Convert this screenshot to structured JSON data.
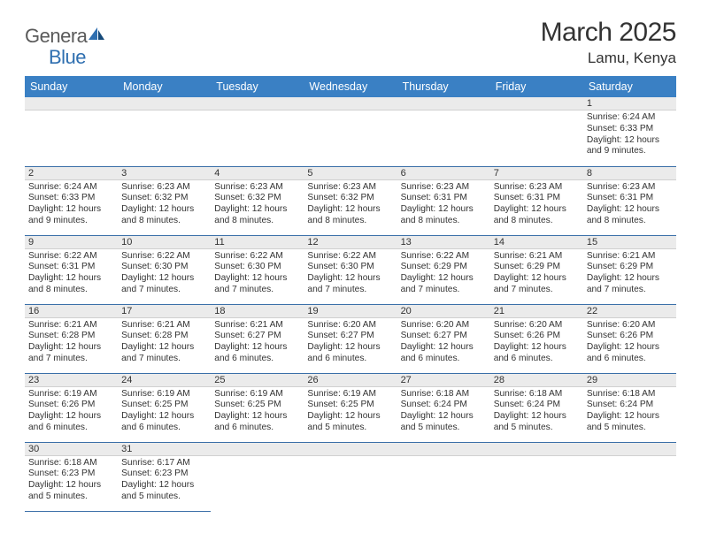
{
  "logo": {
    "text_left": "Genera",
    "text_right": "Blue"
  },
  "title": "March 2025",
  "location": "Lamu, Kenya",
  "header_color": "#3a80c4",
  "row_border_color": "#3a6fa8",
  "daynum_bg": "#ebebeb",
  "day_headers": [
    "Sunday",
    "Monday",
    "Tuesday",
    "Wednesday",
    "Thursday",
    "Friday",
    "Saturday"
  ],
  "weeks": [
    [
      null,
      null,
      null,
      null,
      null,
      null,
      {
        "n": "1",
        "sr": "Sunrise: 6:24 AM",
        "ss": "Sunset: 6:33 PM",
        "dl": "Daylight: 12 hours and 9 minutes."
      }
    ],
    [
      {
        "n": "2",
        "sr": "Sunrise: 6:24 AM",
        "ss": "Sunset: 6:33 PM",
        "dl": "Daylight: 12 hours and 9 minutes."
      },
      {
        "n": "3",
        "sr": "Sunrise: 6:23 AM",
        "ss": "Sunset: 6:32 PM",
        "dl": "Daylight: 12 hours and 8 minutes."
      },
      {
        "n": "4",
        "sr": "Sunrise: 6:23 AM",
        "ss": "Sunset: 6:32 PM",
        "dl": "Daylight: 12 hours and 8 minutes."
      },
      {
        "n": "5",
        "sr": "Sunrise: 6:23 AM",
        "ss": "Sunset: 6:32 PM",
        "dl": "Daylight: 12 hours and 8 minutes."
      },
      {
        "n": "6",
        "sr": "Sunrise: 6:23 AM",
        "ss": "Sunset: 6:31 PM",
        "dl": "Daylight: 12 hours and 8 minutes."
      },
      {
        "n": "7",
        "sr": "Sunrise: 6:23 AM",
        "ss": "Sunset: 6:31 PM",
        "dl": "Daylight: 12 hours and 8 minutes."
      },
      {
        "n": "8",
        "sr": "Sunrise: 6:23 AM",
        "ss": "Sunset: 6:31 PM",
        "dl": "Daylight: 12 hours and 8 minutes."
      }
    ],
    [
      {
        "n": "9",
        "sr": "Sunrise: 6:22 AM",
        "ss": "Sunset: 6:31 PM",
        "dl": "Daylight: 12 hours and 8 minutes."
      },
      {
        "n": "10",
        "sr": "Sunrise: 6:22 AM",
        "ss": "Sunset: 6:30 PM",
        "dl": "Daylight: 12 hours and 7 minutes."
      },
      {
        "n": "11",
        "sr": "Sunrise: 6:22 AM",
        "ss": "Sunset: 6:30 PM",
        "dl": "Daylight: 12 hours and 7 minutes."
      },
      {
        "n": "12",
        "sr": "Sunrise: 6:22 AM",
        "ss": "Sunset: 6:30 PM",
        "dl": "Daylight: 12 hours and 7 minutes."
      },
      {
        "n": "13",
        "sr": "Sunrise: 6:22 AM",
        "ss": "Sunset: 6:29 PM",
        "dl": "Daylight: 12 hours and 7 minutes."
      },
      {
        "n": "14",
        "sr": "Sunrise: 6:21 AM",
        "ss": "Sunset: 6:29 PM",
        "dl": "Daylight: 12 hours and 7 minutes."
      },
      {
        "n": "15",
        "sr": "Sunrise: 6:21 AM",
        "ss": "Sunset: 6:29 PM",
        "dl": "Daylight: 12 hours and 7 minutes."
      }
    ],
    [
      {
        "n": "16",
        "sr": "Sunrise: 6:21 AM",
        "ss": "Sunset: 6:28 PM",
        "dl": "Daylight: 12 hours and 7 minutes."
      },
      {
        "n": "17",
        "sr": "Sunrise: 6:21 AM",
        "ss": "Sunset: 6:28 PM",
        "dl": "Daylight: 12 hours and 7 minutes."
      },
      {
        "n": "18",
        "sr": "Sunrise: 6:21 AM",
        "ss": "Sunset: 6:27 PM",
        "dl": "Daylight: 12 hours and 6 minutes."
      },
      {
        "n": "19",
        "sr": "Sunrise: 6:20 AM",
        "ss": "Sunset: 6:27 PM",
        "dl": "Daylight: 12 hours and 6 minutes."
      },
      {
        "n": "20",
        "sr": "Sunrise: 6:20 AM",
        "ss": "Sunset: 6:27 PM",
        "dl": "Daylight: 12 hours and 6 minutes."
      },
      {
        "n": "21",
        "sr": "Sunrise: 6:20 AM",
        "ss": "Sunset: 6:26 PM",
        "dl": "Daylight: 12 hours and 6 minutes."
      },
      {
        "n": "22",
        "sr": "Sunrise: 6:20 AM",
        "ss": "Sunset: 6:26 PM",
        "dl": "Daylight: 12 hours and 6 minutes."
      }
    ],
    [
      {
        "n": "23",
        "sr": "Sunrise: 6:19 AM",
        "ss": "Sunset: 6:26 PM",
        "dl": "Daylight: 12 hours and 6 minutes."
      },
      {
        "n": "24",
        "sr": "Sunrise: 6:19 AM",
        "ss": "Sunset: 6:25 PM",
        "dl": "Daylight: 12 hours and 6 minutes."
      },
      {
        "n": "25",
        "sr": "Sunrise: 6:19 AM",
        "ss": "Sunset: 6:25 PM",
        "dl": "Daylight: 12 hours and 6 minutes."
      },
      {
        "n": "26",
        "sr": "Sunrise: 6:19 AM",
        "ss": "Sunset: 6:25 PM",
        "dl": "Daylight: 12 hours and 5 minutes."
      },
      {
        "n": "27",
        "sr": "Sunrise: 6:18 AM",
        "ss": "Sunset: 6:24 PM",
        "dl": "Daylight: 12 hours and 5 minutes."
      },
      {
        "n": "28",
        "sr": "Sunrise: 6:18 AM",
        "ss": "Sunset: 6:24 PM",
        "dl": "Daylight: 12 hours and 5 minutes."
      },
      {
        "n": "29",
        "sr": "Sunrise: 6:18 AM",
        "ss": "Sunset: 6:24 PM",
        "dl": "Daylight: 12 hours and 5 minutes."
      }
    ],
    [
      {
        "n": "30",
        "sr": "Sunrise: 6:18 AM",
        "ss": "Sunset: 6:23 PM",
        "dl": "Daylight: 12 hours and 5 minutes."
      },
      {
        "n": "31",
        "sr": "Sunrise: 6:17 AM",
        "ss": "Sunset: 6:23 PM",
        "dl": "Daylight: 12 hours and 5 minutes."
      },
      null,
      null,
      null,
      null,
      null
    ]
  ]
}
